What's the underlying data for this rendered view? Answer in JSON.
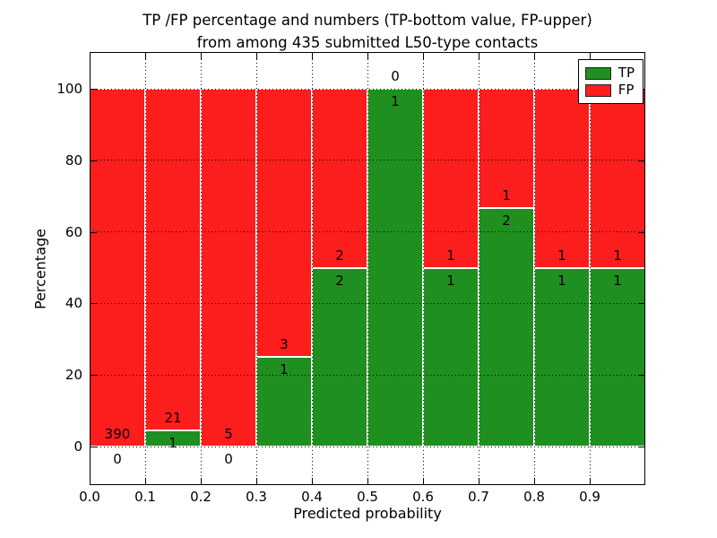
{
  "figure": {
    "title_line1": "TP /FP percentage and numbers (TP-bottom value, FP-upper)",
    "title_line2": "from among 435 submitted L50-type contacts"
  },
  "colors": {
    "tp": "#1f8f1f",
    "fp": "#fc1d1d",
    "axis": "#000000",
    "background": "#ffffff"
  },
  "legend": {
    "items": [
      {
        "label": "TP",
        "series": "tp"
      },
      {
        "label": "FP",
        "series": "fp"
      }
    ]
  },
  "chart_data": {
    "type": "bar",
    "stacked": true,
    "title": "TP /FP percentage and numbers (TP-bottom value, FP-upper) from among 435 submitted L50-type contacts",
    "xlabel": "Predicted probability",
    "ylabel": "Percentage",
    "xlim": [
      0.0,
      1.0
    ],
    "ylim": [
      -11,
      110
    ],
    "grid": true,
    "legend_position": "upper right",
    "bin_width": 0.1,
    "xticks": [
      "0.0",
      "0.1",
      "0.2",
      "0.3",
      "0.4",
      "0.5",
      "0.6",
      "0.7",
      "0.8",
      "0.9"
    ],
    "yticks": [
      "0",
      "20",
      "40",
      "60",
      "80",
      "100"
    ],
    "total_contacts": "435",
    "bins": [
      {
        "range": "0.0-0.1",
        "tp": 0,
        "fp": 390,
        "tp_pct": 0.0,
        "fp_pct": 100.0
      },
      {
        "range": "0.1-0.2",
        "tp": 1,
        "fp": 21,
        "tp_pct": 4.5,
        "fp_pct": 95.5
      },
      {
        "range": "0.2-0.3",
        "tp": 0,
        "fp": 5,
        "tp_pct": 0.0,
        "fp_pct": 100.0
      },
      {
        "range": "0.3-0.4",
        "tp": 1,
        "fp": 3,
        "tp_pct": 25.0,
        "fp_pct": 75.0
      },
      {
        "range": "0.4-0.5",
        "tp": 2,
        "fp": 2,
        "tp_pct": 50.0,
        "fp_pct": 50.0
      },
      {
        "range": "0.5-0.6",
        "tp": 1,
        "fp": 0,
        "tp_pct": 100.0,
        "fp_pct": 0.0
      },
      {
        "range": "0.6-0.7",
        "tp": 1,
        "fp": 1,
        "tp_pct": 50.0,
        "fp_pct": 50.0
      },
      {
        "range": "0.7-0.8",
        "tp": 2,
        "fp": 1,
        "tp_pct": 66.7,
        "fp_pct": 33.3
      },
      {
        "range": "0.8-0.9",
        "tp": 1,
        "fp": 1,
        "tp_pct": 50.0,
        "fp_pct": 50.0
      },
      {
        "range": "0.9-1.0",
        "tp": 1,
        "fp": 1,
        "tp_pct": 50.0,
        "fp_pct": 50.0
      }
    ],
    "series": [
      {
        "name": "TP",
        "values": [
          0,
          1,
          0,
          1,
          2,
          1,
          1,
          2,
          1,
          1
        ]
      },
      {
        "name": "FP",
        "values": [
          390,
          21,
          5,
          3,
          2,
          0,
          1,
          1,
          1,
          1
        ]
      }
    ]
  }
}
